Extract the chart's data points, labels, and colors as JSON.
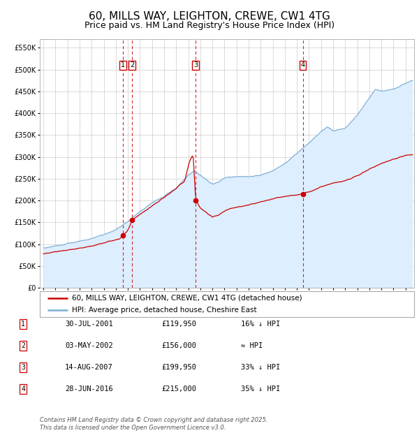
{
  "title": "60, MILLS WAY, LEIGHTON, CREWE, CW1 4TG",
  "subtitle": "Price paid vs. HM Land Registry's House Price Index (HPI)",
  "legend_red": "60, MILLS WAY, LEIGHTON, CREWE, CW1 4TG (detached house)",
  "legend_blue": "HPI: Average price, detached house, Cheshire East",
  "footer": "Contains HM Land Registry data © Crown copyright and database right 2025.\nThis data is licensed under the Open Government Licence v3.0.",
  "transactions": [
    {
      "num": "1",
      "date": "30-JUL-2001",
      "price": "£119,950",
      "hpi_rel": "16% ↓ HPI",
      "date_dec": 2001.58,
      "price_val": 119950
    },
    {
      "num": "2",
      "date": "03-MAY-2002",
      "price": "£156,000",
      "hpi_rel": "≈ HPI",
      "date_dec": 2002.34,
      "price_val": 156000
    },
    {
      "num": "3",
      "date": "14-AUG-2007",
      "price": "£199,950",
      "hpi_rel": "33% ↓ HPI",
      "date_dec": 2007.62,
      "price_val": 199950
    },
    {
      "num": "4",
      "date": "28-JUN-2016",
      "price": "£215,000",
      "hpi_rel": "35% ↓ HPI",
      "date_dec": 2016.49,
      "price_val": 215000
    }
  ],
  "red_color": "#cc0000",
  "blue_color": "#7bafd4",
  "fill_color": "#ddeeff",
  "dashed_color": "#cc0000",
  "box_color": "#cc0000",
  "grid_color": "#cccccc",
  "bg_color": "#ffffff",
  "ylim": [
    0,
    570000
  ],
  "yticks": [
    0,
    50000,
    100000,
    150000,
    200000,
    250000,
    300000,
    350000,
    400000,
    450000,
    500000,
    550000
  ],
  "xlim_start": 1994.7,
  "xlim_end": 2025.7,
  "title_fontsize": 11,
  "subtitle_fontsize": 9,
  "axis_fontsize": 7,
  "legend_fontsize": 7.5,
  "footer_fontsize": 6
}
